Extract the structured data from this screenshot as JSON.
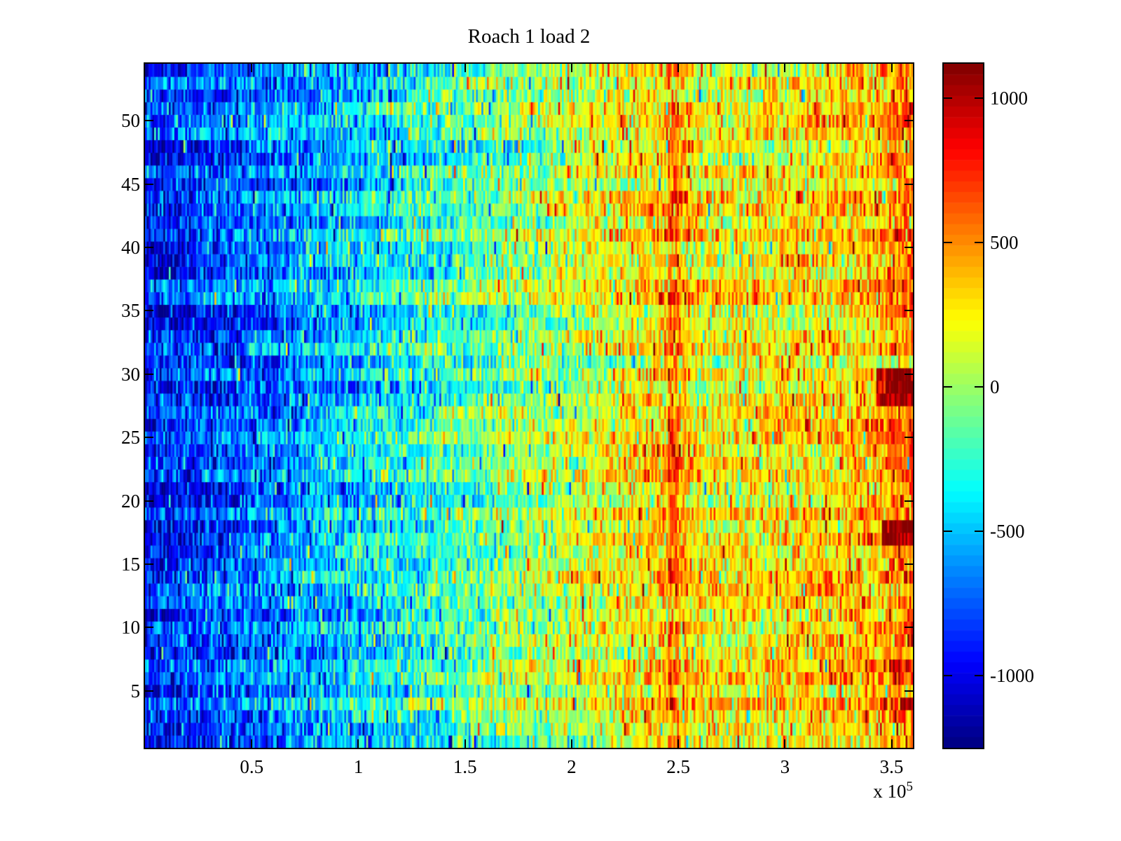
{
  "title": "Roach 1 load 2",
  "colors": {
    "background": "#ffffff",
    "axis": "#000000",
    "text": "#000000"
  },
  "chart_data": {
    "type": "heatmap",
    "title": "Roach 1 load 2",
    "xlabel": "",
    "ylabel": "",
    "x_multiplier_prefix": "x 10",
    "x_multiplier_exp": "5",
    "xlim": [
      0,
      360000
    ],
    "ylim": [
      0.5,
      54.5
    ],
    "rows": 54,
    "x_ticks": [
      {
        "value": 50000,
        "label": "0.5"
      },
      {
        "value": 100000,
        "label": "1"
      },
      {
        "value": 150000,
        "label": "1.5"
      },
      {
        "value": 200000,
        "label": "2"
      },
      {
        "value": 250000,
        "label": "2.5"
      },
      {
        "value": 300000,
        "label": "3"
      },
      {
        "value": 350000,
        "label": "3.5"
      }
    ],
    "y_ticks": [
      {
        "value": 5,
        "label": "5"
      },
      {
        "value": 10,
        "label": "10"
      },
      {
        "value": 15,
        "label": "15"
      },
      {
        "value": 20,
        "label": "20"
      },
      {
        "value": 25,
        "label": "25"
      },
      {
        "value": 30,
        "label": "30"
      },
      {
        "value": 35,
        "label": "35"
      },
      {
        "value": 40,
        "label": "40"
      },
      {
        "value": 45,
        "label": "45"
      },
      {
        "value": 50,
        "label": "50"
      }
    ],
    "colormap": "jet",
    "colormap_levels": 64,
    "clim": [
      -1250,
      1120
    ],
    "colorbar_ticks": [
      {
        "value": 1000,
        "label": "1000"
      },
      {
        "value": 500,
        "label": "500"
      },
      {
        "value": 0,
        "label": "0"
      },
      {
        "value": -500,
        "label": "-500"
      },
      {
        "value": -1000,
        "label": "-1000"
      }
    ],
    "grid": false,
    "legend": "colorbar-right",
    "pattern": {
      "description": "noisy horizontal gradient: deep blue (~ -900) at left rising through cyan/green (~0) mid to orange/red (~ +500) at right; per-row offsets create horizontal banding; dense orange vertical stripe near x=2.47e5; red-heavy right edge with dark-red hotspots near rows 29 and 18",
      "seed": 1337,
      "cols": 420,
      "base_profile_f": [
        0,
        0.08,
        0.18,
        0.3,
        0.4,
        0.48,
        0.56,
        0.62,
        0.67,
        0.705,
        0.73,
        0.8,
        0.88,
        0.95,
        1.0
      ],
      "base_profile_v": [
        -880,
        -780,
        -620,
        -400,
        -200,
        -40,
        110,
        230,
        330,
        360,
        210,
        250,
        330,
        400,
        470
      ],
      "row_offset_sd": 80,
      "row_wave_amp": 45,
      "row_wave_cycles": 2.5,
      "block_cols": 28,
      "block_sd": 55,
      "noise_sd": 215,
      "outlier_prob": 0.055,
      "outlier_min": 250,
      "outlier_max": 620,
      "stripe": {
        "f0": 0.68,
        "f1": 0.695,
        "boost": 220
      },
      "right_edge": {
        "f0": 0.968,
        "boost": 120
      },
      "hotspots": [
        {
          "row_min": 28,
          "row_max": 30,
          "f0": 0.952,
          "boost": 720
        },
        {
          "row_min": 17,
          "row_max": 18,
          "f0": 0.96,
          "boost": 680
        }
      ]
    }
  }
}
